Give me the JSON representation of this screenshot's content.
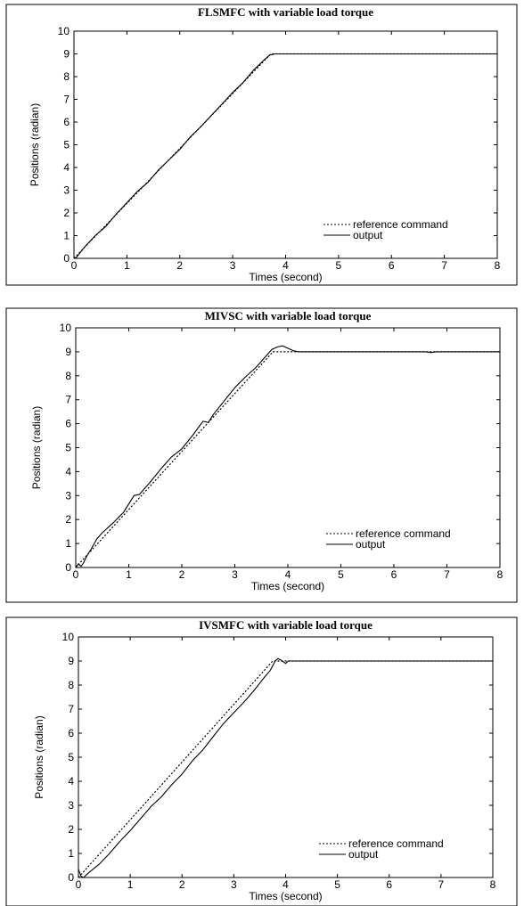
{
  "chart_data": [
    {
      "type": "line",
      "title": "FLSMFC with variable load torque",
      "xlabel": "Times  (second)",
      "ylabel": "Positions  (radian)",
      "xlim": [
        0,
        8
      ],
      "ylim": [
        0,
        10
      ],
      "xticks": [
        "0",
        "1",
        "2",
        "3",
        "4",
        "5",
        "6",
        "7",
        "8"
      ],
      "yticks": [
        "0",
        "1",
        "2",
        "3",
        "4",
        "5",
        "6",
        "7",
        "8",
        "9",
        "10"
      ],
      "grid": false,
      "legend_position": "bottom-right",
      "series": [
        {
          "name": "reference command",
          "style": "dotted",
          "x": [
            0,
            3.72,
            8
          ],
          "y": [
            0,
            9,
            9
          ]
        },
        {
          "name": "output",
          "style": "solid",
          "x": [
            0,
            0.05,
            0.1,
            0.2,
            0.4,
            0.6,
            0.8,
            1.0,
            1.2,
            1.4,
            1.6,
            1.8,
            2.0,
            2.2,
            2.4,
            2.6,
            2.8,
            3.0,
            3.2,
            3.4,
            3.6,
            3.7,
            3.8,
            8
          ],
          "y": [
            0,
            0.05,
            0.2,
            0.5,
            1.0,
            1.4,
            1.95,
            2.45,
            2.95,
            3.35,
            3.9,
            4.35,
            4.8,
            5.35,
            5.8,
            6.3,
            6.8,
            7.3,
            7.75,
            8.3,
            8.75,
            8.95,
            9.0,
            9.0
          ]
        }
      ]
    },
    {
      "type": "line",
      "title": "MIVSC with variable load torque",
      "xlabel": "Times  (second)",
      "ylabel": "Positions  (radian)",
      "xlim": [
        0,
        8
      ],
      "ylim": [
        0,
        10
      ],
      "xticks": [
        "0",
        "1",
        "2",
        "3",
        "4",
        "5",
        "6",
        "7",
        "8"
      ],
      "yticks": [
        "0",
        "1",
        "2",
        "3",
        "4",
        "5",
        "6",
        "7",
        "8",
        "9",
        "10"
      ],
      "grid": false,
      "legend_position": "bottom-right",
      "series": [
        {
          "name": "reference command",
          "style": "dotted",
          "x": [
            0,
            3.72,
            8
          ],
          "y": [
            0,
            9,
            9
          ]
        },
        {
          "name": "output",
          "style": "solid",
          "x": [
            0,
            0.05,
            0.1,
            0.15,
            0.2,
            0.3,
            0.4,
            0.5,
            0.7,
            0.9,
            1.1,
            1.2,
            1.4,
            1.6,
            1.8,
            2.0,
            2.2,
            2.4,
            2.5,
            2.6,
            2.8,
            3.0,
            3.2,
            3.4,
            3.6,
            3.7,
            3.8,
            3.9,
            4.0,
            4.1,
            4.2,
            4.4,
            6.6,
            6.7,
            6.8,
            8
          ],
          "y": [
            0,
            0.15,
            0.05,
            0.2,
            0.45,
            0.8,
            1.2,
            1.45,
            1.85,
            2.3,
            3.0,
            3.05,
            3.55,
            4.1,
            4.6,
            4.95,
            5.5,
            6.1,
            6.05,
            6.4,
            6.95,
            7.5,
            7.95,
            8.35,
            8.85,
            9.1,
            9.2,
            9.25,
            9.15,
            9.05,
            9.0,
            9.0,
            9.0,
            8.97,
            9.0,
            9.0
          ]
        }
      ]
    },
    {
      "type": "line",
      "title": "IVSMFC with variable load torque",
      "xlabel": "Times  (second)",
      "ylabel": "Positions  (radian)",
      "xlim": [
        0,
        8
      ],
      "ylim": [
        0,
        10
      ],
      "xticks": [
        "0",
        "1",
        "2",
        "3",
        "4",
        "5",
        "6",
        "7",
        "8"
      ],
      "yticks": [
        "0",
        "1",
        "2",
        "3",
        "4",
        "5",
        "6",
        "7",
        "8",
        "9",
        "10"
      ],
      "grid": false,
      "legend_position": "bottom-right",
      "series": [
        {
          "name": "reference command",
          "style": "dotted",
          "x": [
            0,
            3.75,
            8
          ],
          "y": [
            0,
            9,
            9
          ]
        },
        {
          "name": "output",
          "style": "solid",
          "x": [
            0,
            0.05,
            0.1,
            0.15,
            0.2,
            0.4,
            0.6,
            0.8,
            1.0,
            1.2,
            1.4,
            1.6,
            1.8,
            2.0,
            2.2,
            2.4,
            2.6,
            2.8,
            3.0,
            3.2,
            3.4,
            3.6,
            3.7,
            3.8,
            3.85,
            3.9,
            4.0,
            4.05,
            4.2,
            8
          ],
          "y": [
            0.35,
            0.05,
            0.0,
            0.1,
            0.2,
            0.55,
            1.0,
            1.5,
            1.95,
            2.45,
            2.95,
            3.35,
            3.85,
            4.3,
            4.85,
            5.3,
            5.85,
            6.4,
            6.85,
            7.3,
            7.8,
            8.35,
            8.6,
            9.0,
            9.1,
            9.05,
            8.9,
            9.0,
            9.0,
            9.0
          ]
        }
      ]
    }
  ]
}
